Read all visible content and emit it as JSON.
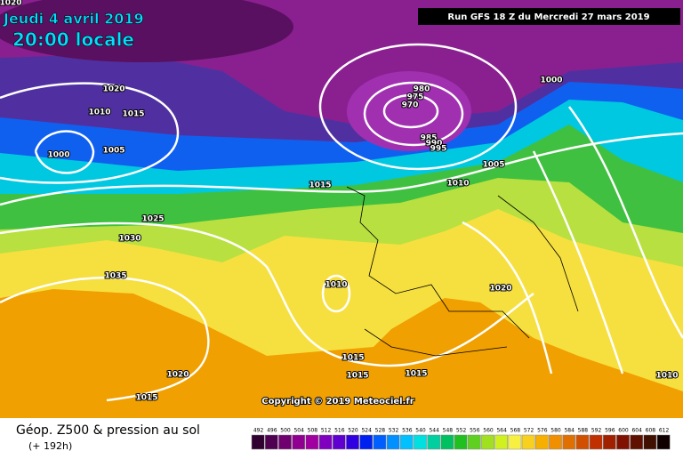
{
  "header": {
    "date": "Jeudi 4 avril 2019",
    "time": "20:00 locale",
    "run": "Run GFS 18 Z du Mercredi 27 mars 2019"
  },
  "isobar_labels": [
    "1020",
    "1020",
    "1010",
    "1015",
    "1005",
    "1000",
    "980",
    "975",
    "970",
    "985",
    "990",
    "995",
    "1000",
    "1005",
    "1010",
    "1015",
    "1025",
    "1030",
    "1035",
    "1010",
    "1020",
    "1015",
    "1015",
    "1015",
    "1020",
    "1015",
    "1010"
  ],
  "copyright": "Copyright © 2019 Meteociel.fr",
  "footer": {
    "title": "Géop. Z500 & pression au sol",
    "subtitle": "(+ 192h)"
  },
  "scale": {
    "labels": [
      492,
      496,
      500,
      504,
      508,
      512,
      516,
      520,
      524,
      528,
      532,
      536,
      540,
      544,
      548,
      552,
      556,
      560,
      564,
      568,
      572,
      576,
      580,
      584,
      588,
      592,
      596,
      600,
      604,
      608,
      612
    ]
  }
}
